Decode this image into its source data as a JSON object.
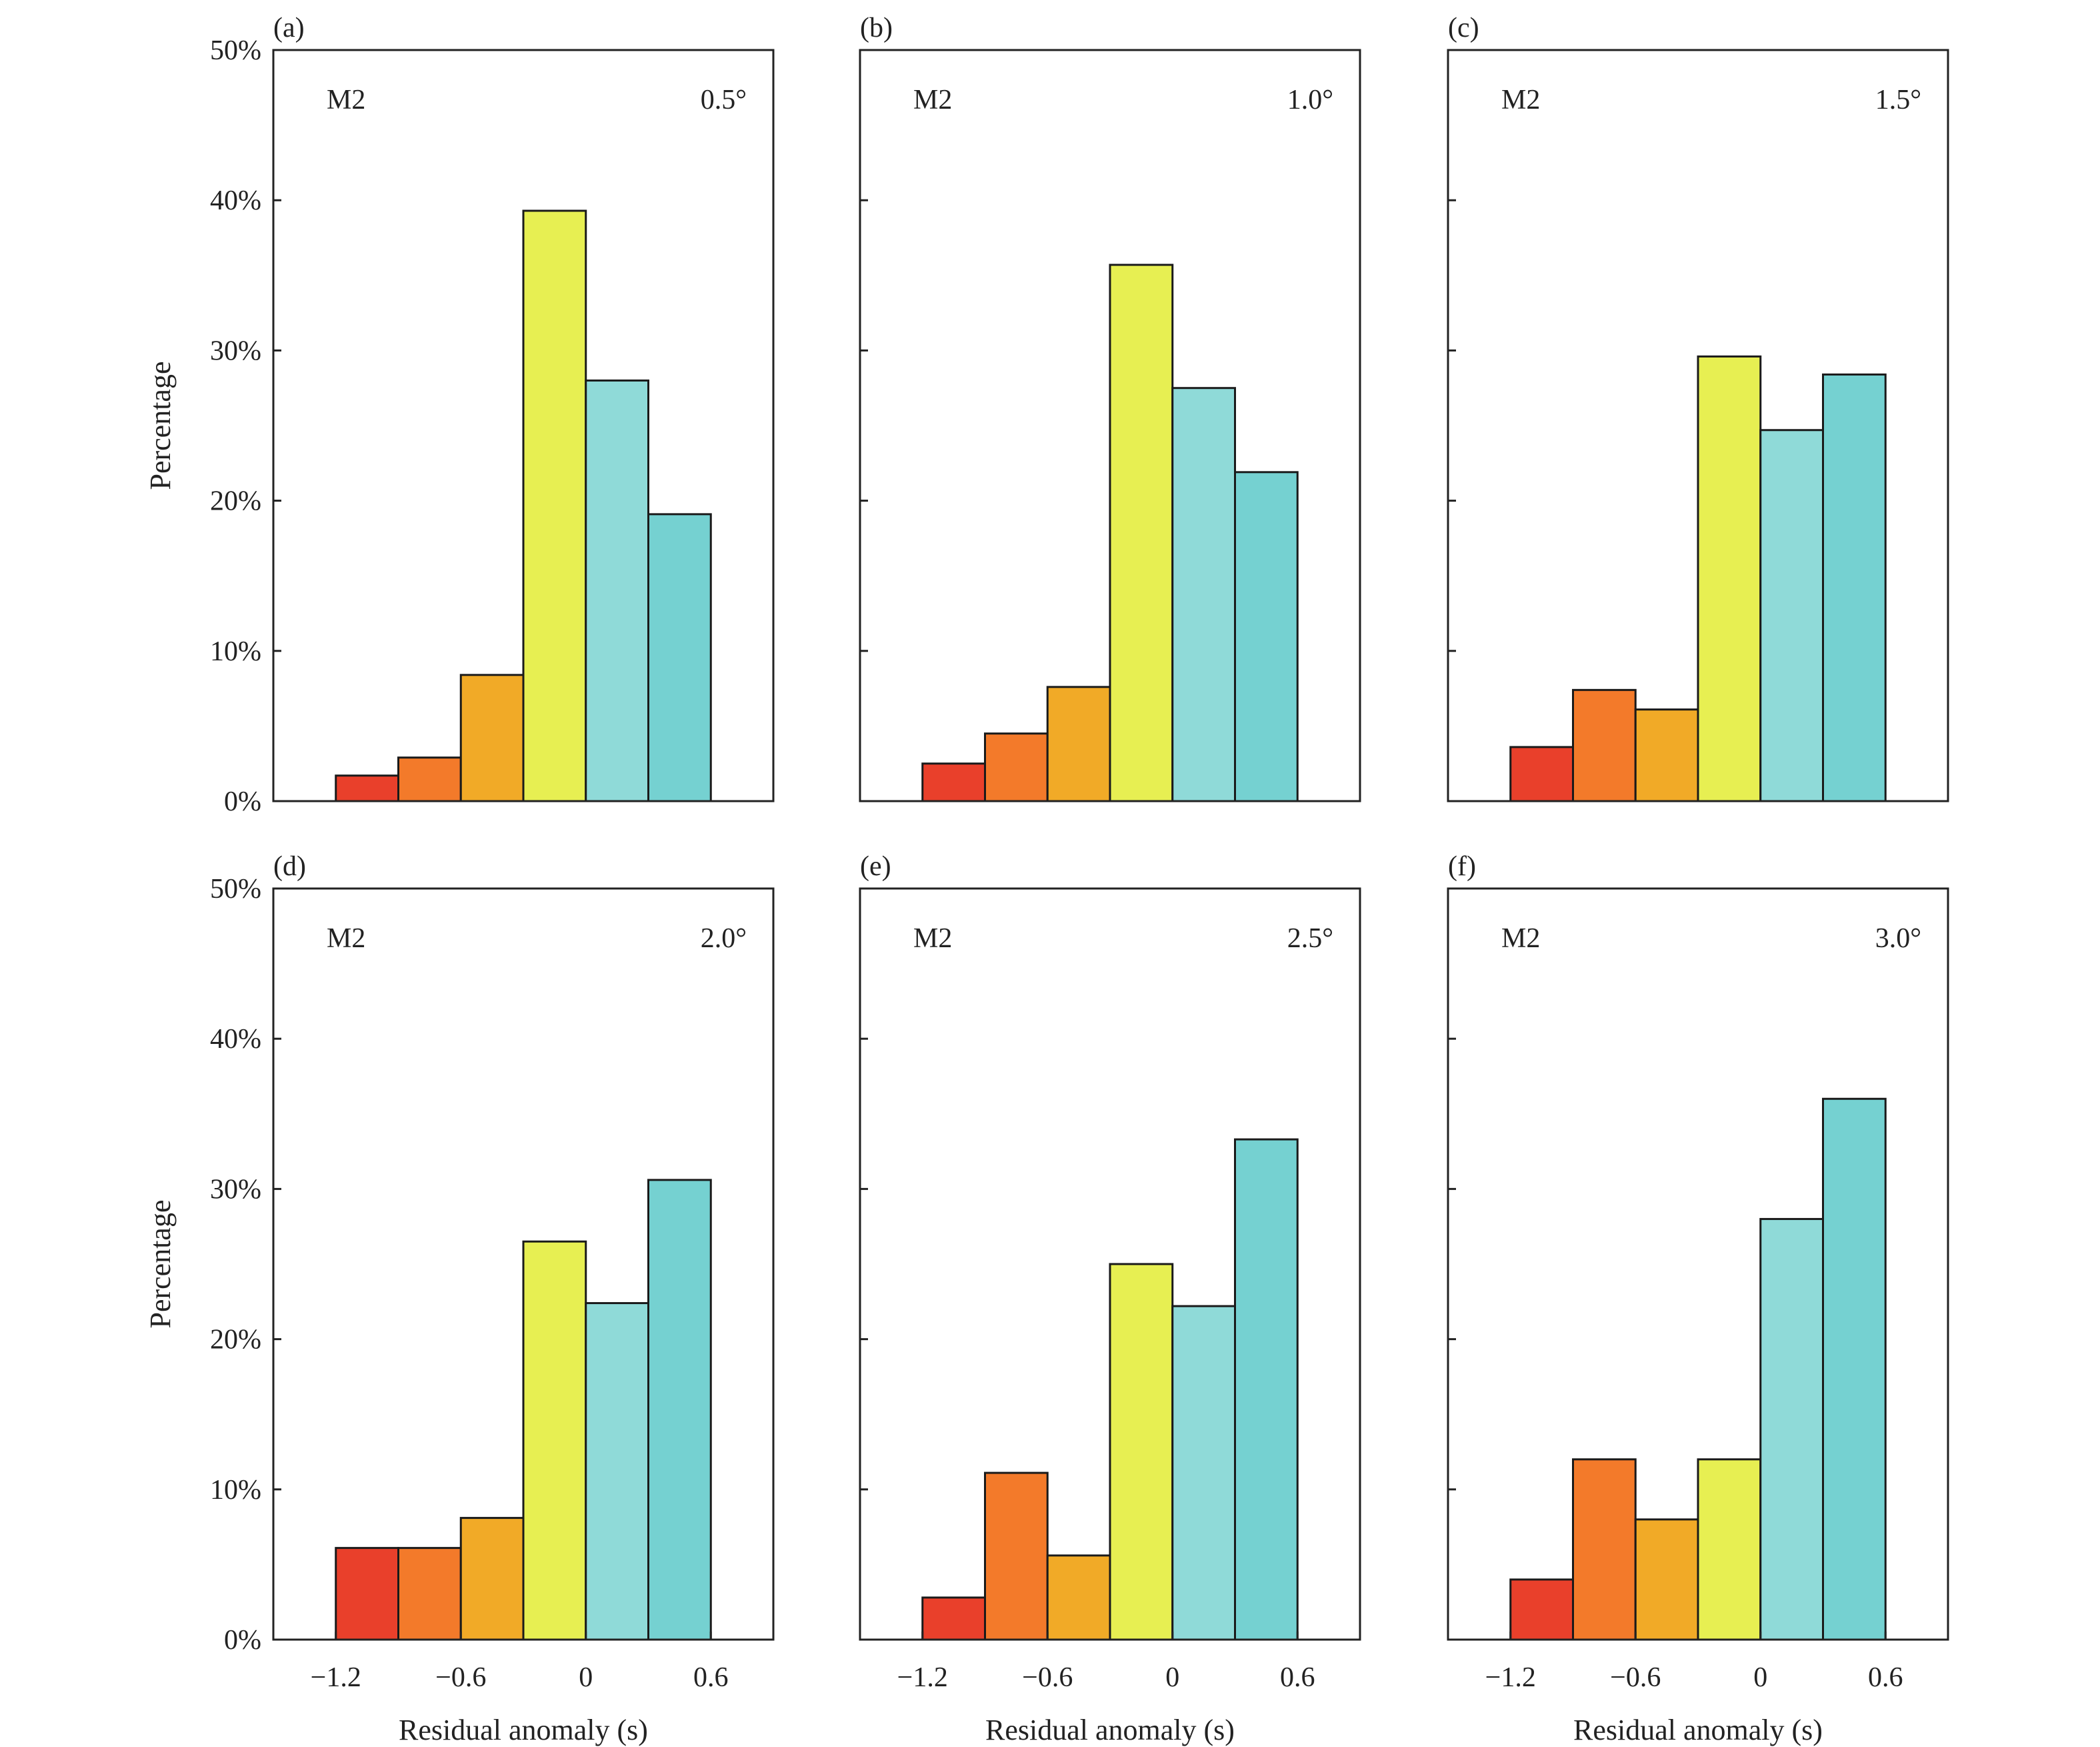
{
  "figure": {
    "ylabel": "Percentage",
    "xlabel": "Residual anomaly (s)",
    "y_tick_labels": [
      "0%",
      "10%",
      "20%",
      "30%",
      "40%",
      "50%"
    ],
    "x_tick_labels": [
      "−1.2",
      "−0.6",
      "0",
      "0.6"
    ],
    "colors": [
      "#e9402b",
      "#f37a2a",
      "#f1aa27",
      "#e7ef52",
      "#8fdad8",
      "#75d1d1"
    ]
  },
  "chart_data": [
    {
      "type": "bar",
      "panel": "(a)",
      "label": "M2",
      "tag": "0.5°",
      "bin_edges": [
        -1.2,
        -0.9,
        -0.6,
        -0.3,
        0,
        0.3,
        0.6
      ],
      "values": [
        1.7,
        2.9,
        8.4,
        39.3,
        28.0,
        19.1
      ],
      "xlim": [
        -1.5,
        0.9
      ],
      "ylim": [
        0,
        50
      ]
    },
    {
      "type": "bar",
      "panel": "(b)",
      "label": "M2",
      "tag": "1.0°",
      "bin_edges": [
        -1.2,
        -0.9,
        -0.6,
        -0.3,
        0,
        0.3,
        0.6
      ],
      "values": [
        2.5,
        4.5,
        7.6,
        35.7,
        27.5,
        21.9
      ],
      "xlim": [
        -1.5,
        0.9
      ],
      "ylim": [
        0,
        50
      ]
    },
    {
      "type": "bar",
      "panel": "(c)",
      "label": "M2",
      "tag": "1.5°",
      "bin_edges": [
        -1.2,
        -0.9,
        -0.6,
        -0.3,
        0,
        0.3,
        0.6
      ],
      "values": [
        3.6,
        7.4,
        6.1,
        29.6,
        24.7,
        28.4
      ],
      "xlim": [
        -1.5,
        0.9
      ],
      "ylim": [
        0,
        50
      ]
    },
    {
      "type": "bar",
      "panel": "(d)",
      "label": "M2",
      "tag": "2.0°",
      "bin_edges": [
        -1.2,
        -0.9,
        -0.6,
        -0.3,
        0,
        0.3,
        0.6
      ],
      "values": [
        6.1,
        6.1,
        8.1,
        26.5,
        22.4,
        30.6
      ],
      "xlim": [
        -1.5,
        0.9
      ],
      "ylim": [
        0,
        50
      ]
    },
    {
      "type": "bar",
      "panel": "(e)",
      "label": "M2",
      "tag": "2.5°",
      "bin_edges": [
        -1.2,
        -0.9,
        -0.6,
        -0.3,
        0,
        0.3,
        0.6
      ],
      "values": [
        2.8,
        11.1,
        5.6,
        25.0,
        22.2,
        33.3
      ],
      "xlim": [
        -1.5,
        0.9
      ],
      "ylim": [
        0,
        50
      ]
    },
    {
      "type": "bar",
      "panel": "(f)",
      "label": "M2",
      "tag": "3.0°",
      "bin_edges": [
        -1.2,
        -0.9,
        -0.6,
        -0.3,
        0,
        0.3,
        0.6
      ],
      "values": [
        4.0,
        12.0,
        8.0,
        12.0,
        28.0,
        36.0
      ],
      "xlim": [
        -1.5,
        0.9
      ],
      "ylim": [
        0,
        50
      ]
    }
  ]
}
